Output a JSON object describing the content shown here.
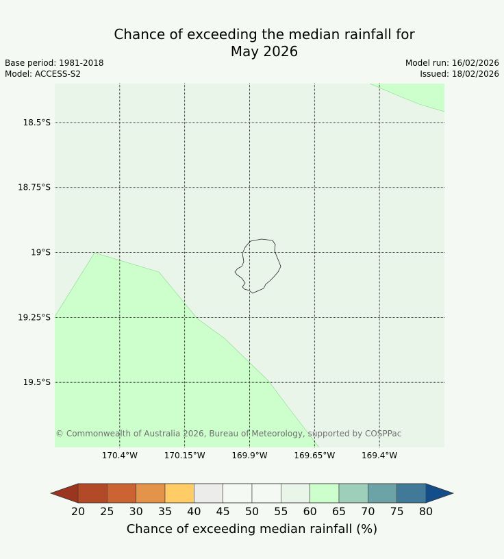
{
  "title_line1": "Chance of exceeding the median rainfall for",
  "title_line2": "May 2026",
  "base_period": "Base period: 1981-2018",
  "model": "Model: ACCESS-S2",
  "model_run": "Model run: 16/02/2026",
  "issued": "Issued: 18/02/2026",
  "copyright": "© Commonwealth of Australia 2026, Bureau of Meteorology, supported by COSPPac",
  "map": {
    "lon_range": [
      -170.65,
      -169.15
    ],
    "lat_range": [
      -18.35,
      -19.75
    ],
    "lat_ticks": [
      {
        "value": -18.5,
        "label": "18.5°S"
      },
      {
        "value": -18.75,
        "label": "18.75°S"
      },
      {
        "value": -19.0,
        "label": "19°S"
      },
      {
        "value": -19.25,
        "label": "19.25°S"
      },
      {
        "value": -19.5,
        "label": "19.5°S"
      }
    ],
    "lon_ticks": [
      {
        "value": -170.4,
        "label": "170.4°W"
      },
      {
        "value": -170.15,
        "label": "170.15°W"
      },
      {
        "value": -169.9,
        "label": "169.9°W"
      },
      {
        "value": -169.65,
        "label": "169.65°W"
      },
      {
        "value": -169.4,
        "label": "169.4°W"
      }
    ],
    "background_color": "#eaf5ea",
    "high_chance_color": "#ccffcc"
  },
  "colorbar": {
    "title": "Chance of exceeding median rainfall (%)",
    "ticks": [
      "20",
      "25",
      "30",
      "35",
      "40",
      "45",
      "50",
      "55",
      "60",
      "65",
      "70",
      "75",
      "80"
    ],
    "under_color": "#9b3520",
    "over_color": "#134e8a",
    "colors": [
      "#b34a27",
      "#cc6333",
      "#e3944a",
      "#ffcc66",
      "#ececea",
      "#f5f9f3",
      "#f5f9f3",
      "#eaf5ea",
      "#ccffcc",
      "#9ecfba",
      "#6ba3a6",
      "#417a99"
    ]
  }
}
